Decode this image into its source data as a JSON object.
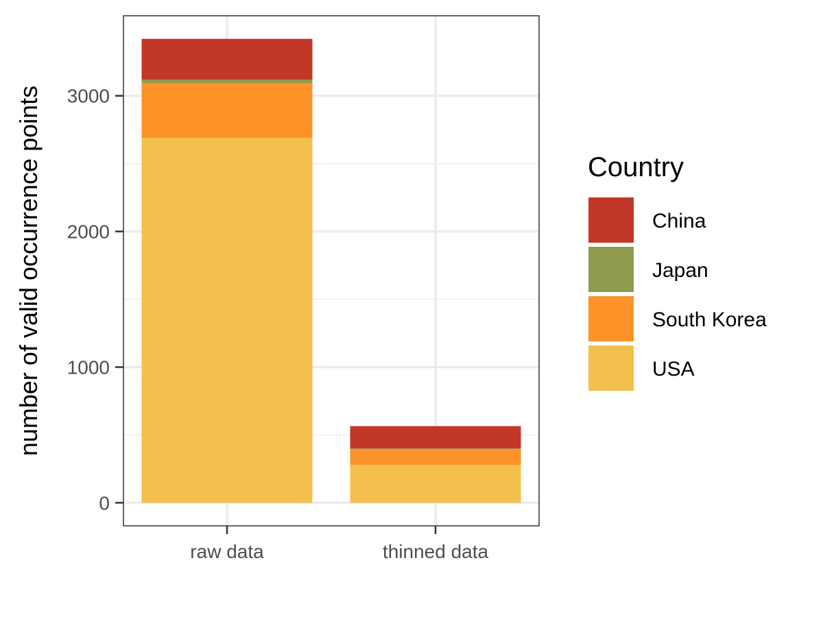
{
  "chart_data": {
    "type": "bar",
    "stacked": true,
    "xlabel": "",
    "ylabel": "number of valid occurrence points",
    "categories": [
      "raw data",
      "thinned data"
    ],
    "ylim": [
      -170,
      3590
    ],
    "yticks": [
      0,
      1000,
      2000,
      3000
    ],
    "ytick_labels": [
      "0",
      "1000",
      "2000",
      "3000"
    ],
    "grid": true,
    "legend": {
      "title": "Country",
      "placement": "right"
    },
    "series": [
      {
        "name": "USA",
        "values": [
          2690,
          280
        ],
        "color": "#F3C04D"
      },
      {
        "name": "South Korea",
        "values": [
          405,
          115
        ],
        "color": "#FD9228"
      },
      {
        "name": "Japan",
        "values": [
          25,
          5
        ],
        "color": "#8F9A4D"
      },
      {
        "name": "China",
        "values": [
          300,
          165
        ],
        "color": "#C13728"
      }
    ],
    "legend_order": [
      "China",
      "Japan",
      "South Korea",
      "USA"
    ]
  }
}
